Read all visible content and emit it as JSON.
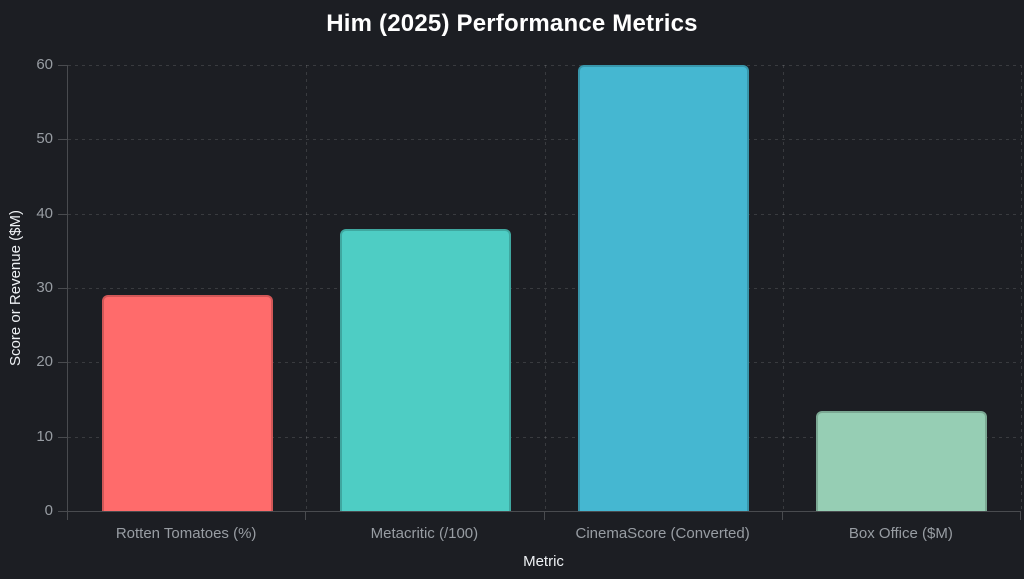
{
  "title": "Him (2025) Performance Metrics",
  "chart_data": {
    "type": "bar",
    "title": "Him (2025) Performance Metrics",
    "categories": [
      "Rotten Tomatoes (%)",
      "Metacritic (/100)",
      "CinemaScore (Converted)",
      "Box Office ($M)"
    ],
    "values": [
      29,
      38,
      60,
      13.5
    ],
    "bar_colors": [
      "#ff6b6b",
      "#4ecdc4",
      "#45b7d1",
      "#96ceb4"
    ],
    "xlabel": "Metric",
    "ylabel": "Score or Revenue ($M)",
    "ylim": [
      0,
      60
    ],
    "y_ticks": [
      0,
      10,
      20,
      30,
      40,
      50,
      60
    ],
    "grid": true,
    "grid_style": "dashed",
    "legend": "none"
  },
  "colors": {
    "background": "#1c1e23",
    "title_text": "#ffffff",
    "axis_title_text": "#eef1f4",
    "tick_text": "#989da3",
    "gridline": "rgba(255,255,255,0.13)",
    "axis_line": "rgba(255,255,255,0.2)"
  }
}
